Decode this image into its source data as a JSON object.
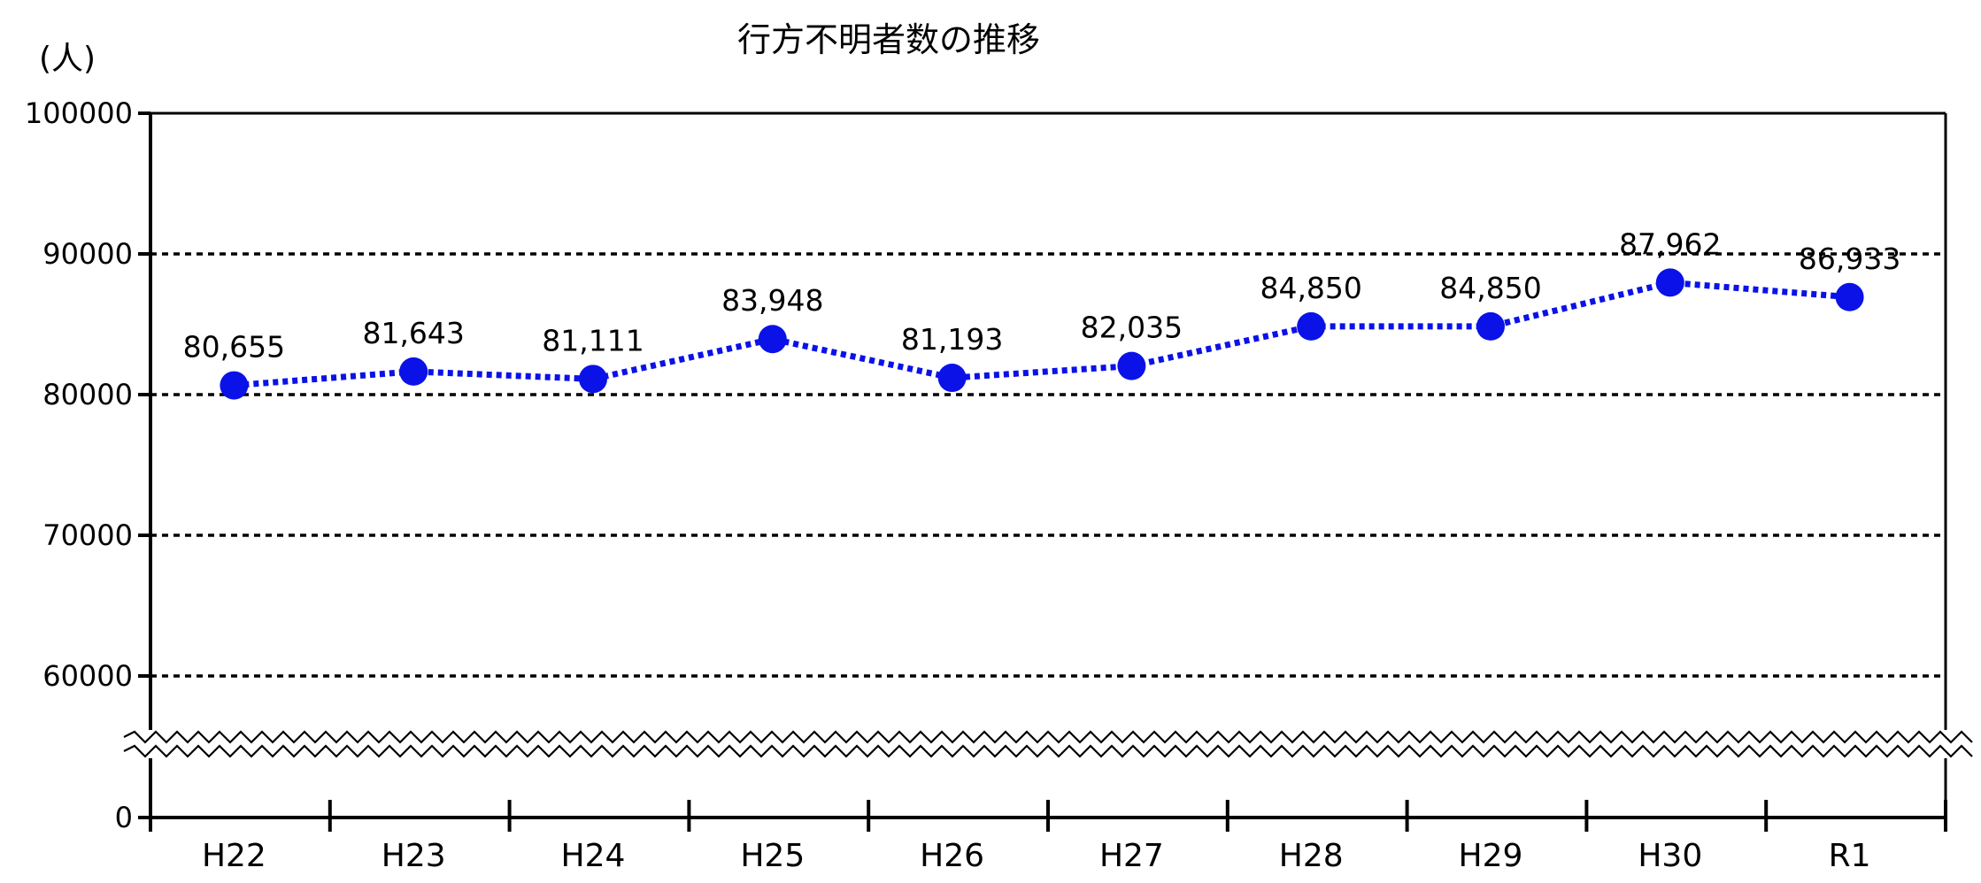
{
  "chart_data": {
    "type": "line",
    "title": "行方不明者数の推移",
    "ylabel": "(人)",
    "xlabel": "",
    "categories": [
      "H22",
      "H23",
      "H24",
      "H25",
      "H26",
      "H27",
      "H28",
      "H29",
      "H30",
      "R1"
    ],
    "series": [
      {
        "values": [
          80655,
          81643,
          81111,
          83948,
          81193,
          82035,
          84850,
          84850,
          87962,
          86933
        ],
        "labels": [
          "80,655",
          "81,643",
          "81,111",
          "83,948",
          "81,193",
          "82,035",
          "84,850",
          "84,850",
          "87,962",
          "86,933"
        ]
      }
    ],
    "y_ticks": [
      "0",
      "60000",
      "70000",
      "80000",
      "90000",
      "100000"
    ],
    "ylim": [
      60000,
      100000
    ],
    "y_axis_break": true,
    "grid": "horizontal dotted",
    "colors": {
      "series": "#0a12e8",
      "grid": "#000000"
    }
  }
}
